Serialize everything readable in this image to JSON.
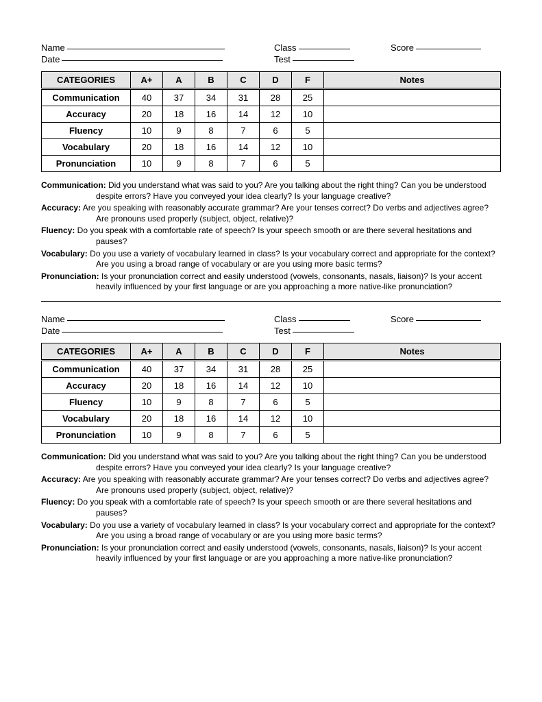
{
  "fields": {
    "name": "Name",
    "class": "Class",
    "score": "Score",
    "date": "Date",
    "test": "Test"
  },
  "table": {
    "headers": [
      "CATEGORIES",
      "A+",
      "A",
      "B",
      "C",
      "D",
      "F",
      "Notes"
    ],
    "rows": [
      {
        "cat": "Communication",
        "vals": [
          "40",
          "37",
          "34",
          "31",
          "28",
          "25"
        ]
      },
      {
        "cat": "Accuracy",
        "vals": [
          "20",
          "18",
          "16",
          "14",
          "12",
          "10"
        ]
      },
      {
        "cat": "Fluency",
        "vals": [
          "10",
          "9",
          "8",
          "7",
          "6",
          "5"
        ]
      },
      {
        "cat": "Vocabulary",
        "vals": [
          "20",
          "18",
          "16",
          "14",
          "12",
          "10"
        ]
      },
      {
        "cat": "Pronunciation",
        "vals": [
          "10",
          "9",
          "8",
          "7",
          "6",
          "5"
        ]
      }
    ]
  },
  "descriptions": [
    {
      "label": "Communication:",
      "text": "Did you understand what was said to you? Are you talking about the right thing? Can you be understood despite errors? Have you conveyed your idea clearly? Is your language creative?"
    },
    {
      "label": "Accuracy:",
      "text": "Are you speaking with reasonably accurate grammar? Are your tenses correct? Do verbs and adjectives agree? Are pronouns used properly (subject, object, relative)?"
    },
    {
      "label": "Fluency:",
      "text": "Do you speak with a comfortable rate of speech? Is your speech smooth or are there several hesitations and pauses?"
    },
    {
      "label": "Vocabulary:",
      "text": "Do you use a variety of vocabulary learned in class? Is your vocabulary correct and appropriate for the context?  Are you using a broad range of vocabulary or are you using more basic terms?"
    },
    {
      "label": "Pronunciation:",
      "text": "Is your pronunciation correct and easily understood (vowels, consonants, nasals, liaison)? Is your accent heavily influenced by your first language or are you approaching a more native-like pronunciation?"
    }
  ],
  "style": {
    "line_widths": {
      "name": 230,
      "class": 75,
      "score": 95,
      "date": 235,
      "test": 90
    },
    "header_bg": "#e5e5e5"
  }
}
